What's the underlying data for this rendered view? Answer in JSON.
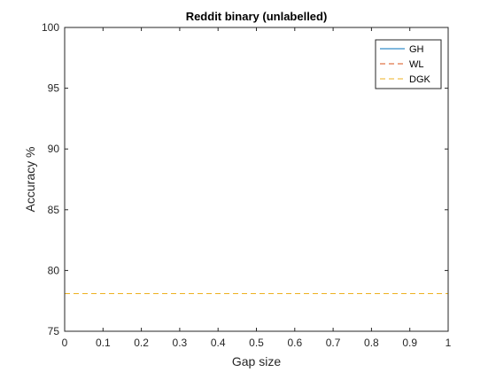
{
  "chart_data": {
    "type": "line",
    "title": "Reddit binary (unlabelled)",
    "xlabel": "Gap size",
    "ylabel": "Accuracy %",
    "xlim": [
      0,
      1
    ],
    "ylim": [
      75,
      100
    ],
    "xticks": [
      0,
      0.1,
      0.2,
      0.3,
      0.4,
      0.5,
      0.6,
      0.7,
      0.8,
      0.9,
      1
    ],
    "xtick_labels": [
      "0",
      "0.1",
      "0.2",
      "0.3",
      "0.4",
      "0.5",
      "0.6",
      "0.7",
      "0.8",
      "0.9",
      "1"
    ],
    "yticks": [
      75,
      80,
      85,
      90,
      95,
      100
    ],
    "ytick_labels": [
      "75",
      "80",
      "85",
      "90",
      "95",
      "100"
    ],
    "grid": false,
    "legend_position": "top-right",
    "series": [
      {
        "name": "GH",
        "x": [
          0,
          1
        ],
        "values": [
          100,
          100
        ],
        "color": "#0072BD",
        "style": "solid"
      },
      {
        "name": "WL",
        "x": [
          0,
          1
        ],
        "values": [
          100,
          100
        ],
        "color": "#D95319",
        "style": "dashed"
      },
      {
        "name": "DGK",
        "x": [
          0,
          1
        ],
        "values": [
          78.1,
          78.1
        ],
        "color": "#EDB120",
        "style": "dashed"
      }
    ]
  }
}
